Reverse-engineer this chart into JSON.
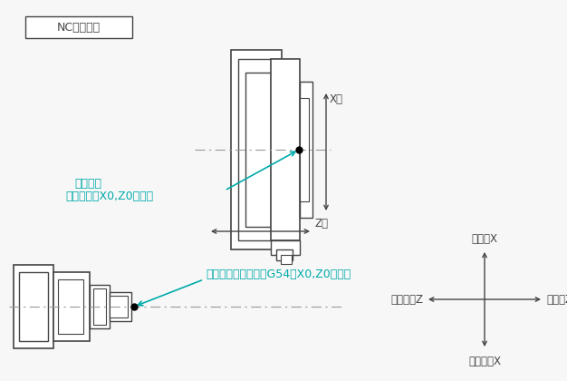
{
  "bg_color": "#f7f7f7",
  "line_color": "#444444",
  "centerline_color": "#999999",
  "teal_color": "#00aaaa",
  "title_box_text": "NC旋盤の例",
  "label_x_axis": "X軸",
  "label_z_axis": "Z軸",
  "label_machine_origin_l1": "機械原点",
  "label_machine_origin_l2": "（機械座標X0,Z0位置）",
  "label_work_origin": "ワーク座標系原点（G54　X0,Z0位置）",
  "label_plus_x": "プラスX",
  "label_minus_x": "マイナスX",
  "label_plus_z": "プラスZ",
  "label_minus_z": "マイナスZ"
}
